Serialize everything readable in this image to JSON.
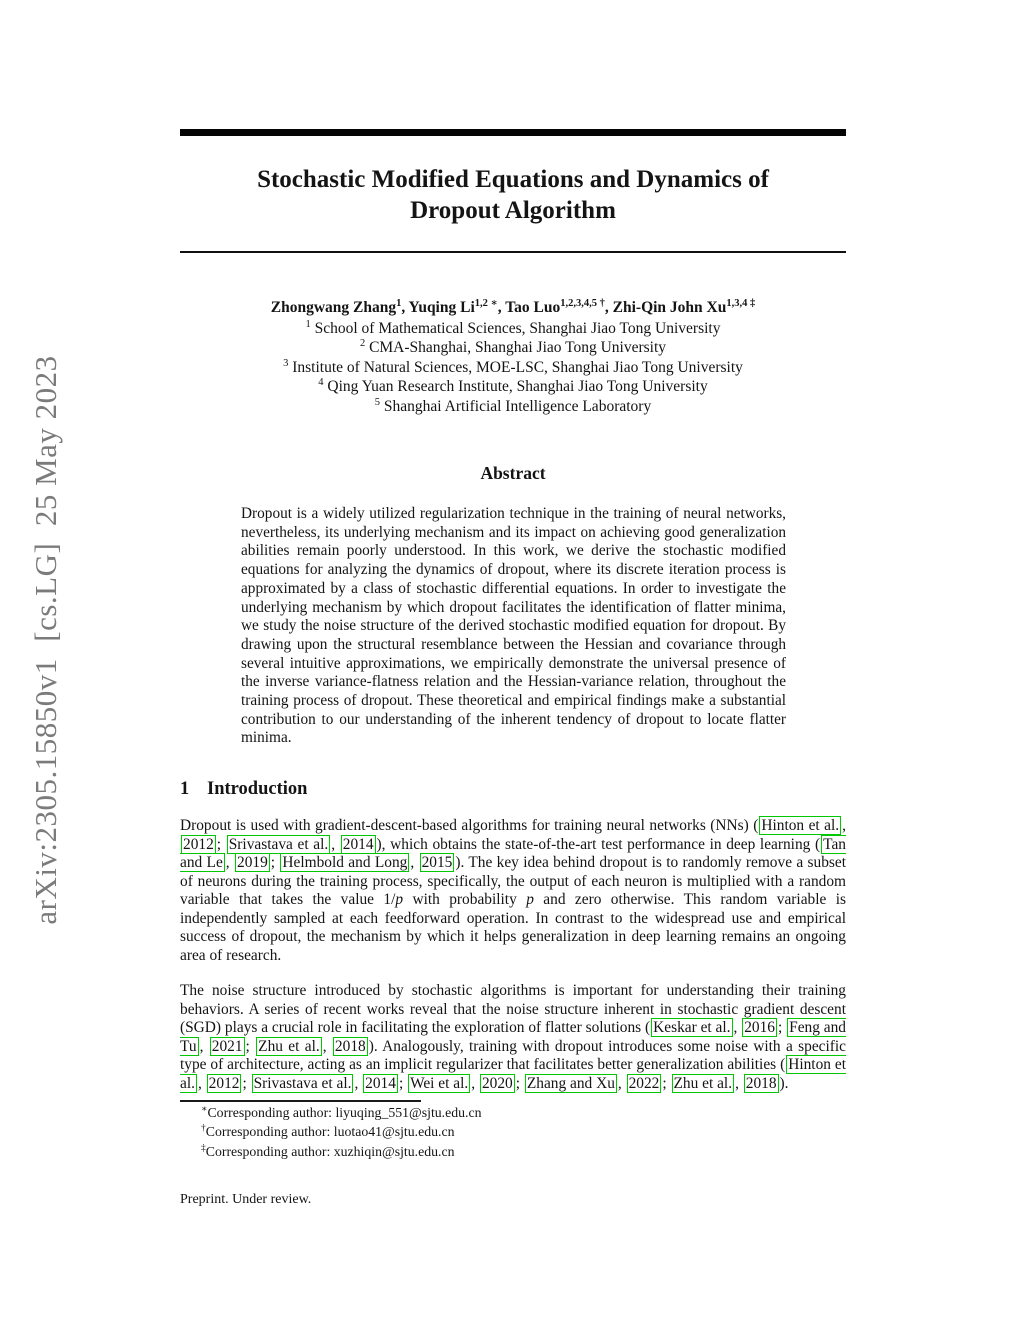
{
  "watermark": {
    "text": "arXiv:2305.15850v1  [cs.LG]  25 May 2023"
  },
  "title": {
    "text": "Stochastic Modified Equations and Dynamics of Dropout Algorithm"
  },
  "authors": {
    "line": [
      {
        "t": "Zhongwang Zhang"
      },
      {
        "sup": "1"
      },
      {
        "t": ", Yuqing Li"
      },
      {
        "sup": "1,2 ∗"
      },
      {
        "t": ", Tao Luo"
      },
      {
        "sup": "1,2,3,4,5 †"
      },
      {
        "t": ", Zhi-Qin John Xu"
      },
      {
        "sup": "1,3,4 ‡"
      }
    ],
    "affiliations": [
      [
        {
          "sup": "1"
        },
        {
          "t": " School of Mathematical Sciences, Shanghai Jiao Tong University"
        }
      ],
      [
        {
          "sup": "2"
        },
        {
          "t": " CMA-Shanghai, Shanghai Jiao Tong University"
        }
      ],
      [
        {
          "sup": "3"
        },
        {
          "t": " Institute of Natural Sciences, MOE-LSC, Shanghai Jiao Tong University"
        }
      ],
      [
        {
          "sup": "4"
        },
        {
          "t": " Qing Yuan Research Institute, Shanghai Jiao Tong University"
        }
      ],
      [
        {
          "sup": "5"
        },
        {
          "t": " Shanghai Artificial Intelligence Laboratory"
        }
      ]
    ]
  },
  "abstract": {
    "heading": "Abstract",
    "text": "Dropout is a widely utilized regularization technique in the training of neural networks, nevertheless, its underlying mechanism and its impact on achieving good generalization abilities remain poorly understood. In this work, we derive the stochastic modified equations for analyzing the dynamics of dropout, where its discrete iteration process is approximated by a class of stochastic differential equations. In order to investigate the underlying mechanism by which dropout facilitates the identification of flatter minima, we study the noise structure of the derived stochastic modified equation for dropout. By drawing upon the structural resemblance between the Hessian and covariance through several intuitive approximations, we empirically demonstrate the universal presence of the inverse variance-flatness relation and the Hessian-variance relation, throughout the training process of dropout. These theoretical and empirical findings make a substantial contribution to our understanding of the inherent tendency of dropout to locate flatter minima."
  },
  "introduction": {
    "number": "1",
    "heading": "Introduction",
    "paragraphs": [
      [
        {
          "t": "Dropout is used with gradient-descent-based algorithms for training neural networks (NNs) ("
        },
        {
          "cite": "Hinton et al."
        },
        {
          "t": ", "
        },
        {
          "cite": "2012"
        },
        {
          "t": "; "
        },
        {
          "cite": "Srivastava et al."
        },
        {
          "t": ", "
        },
        {
          "cite": "2014"
        },
        {
          "t": "), which obtains the state-of-the-art test performance in deep learning ("
        },
        {
          "cite": "Tan and Le"
        },
        {
          "t": ", "
        },
        {
          "cite": "2019"
        },
        {
          "t": "; "
        },
        {
          "cite": "Helmbold and Long"
        },
        {
          "t": ", "
        },
        {
          "cite": "2015"
        },
        {
          "t": "). The key idea behind dropout is to randomly remove a subset of neurons during the training process, specifically, the output of each neuron is multiplied with a random variable that takes the value 1/"
        },
        {
          "i": "p"
        },
        {
          "t": " with probability "
        },
        {
          "i": "p"
        },
        {
          "t": " and zero otherwise. This random variable is independently sampled at each feedforward operation. In contrast to the widespread use and empirical success of dropout, the mechanism by which it helps generalization in deep learning remains an ongoing area of research."
        }
      ],
      [
        {
          "t": "The noise structure introduced by stochastic algorithms is important for understanding their training behaviors. A series of recent works reveal that the noise structure inherent in stochastic gradient descent (SGD) plays a crucial role in facilitating the exploration of flatter solutions ("
        },
        {
          "cite": "Keskar et al."
        },
        {
          "t": ", "
        },
        {
          "cite": "2016"
        },
        {
          "t": "; "
        },
        {
          "cite": "Feng and Tu"
        },
        {
          "t": ", "
        },
        {
          "cite": "2021"
        },
        {
          "t": "; "
        },
        {
          "cite": "Zhu et al."
        },
        {
          "t": ", "
        },
        {
          "cite": "2018"
        },
        {
          "t": "). Analogously, training with dropout introduces some noise with a specific type of architecture, acting as an implicit regularizer that facilitates better generalization abilities ("
        },
        {
          "cite": "Hinton et al."
        },
        {
          "t": ", "
        },
        {
          "cite": "2012"
        },
        {
          "t": "; "
        },
        {
          "cite": "Srivastava et al."
        },
        {
          "t": ", "
        },
        {
          "cite": "2014"
        },
        {
          "t": "; "
        },
        {
          "cite": "Wei et al."
        },
        {
          "t": ", "
        },
        {
          "cite": "2020"
        },
        {
          "t": "; "
        },
        {
          "cite": "Zhang and Xu"
        },
        {
          "t": ", "
        },
        {
          "cite": "2022"
        },
        {
          "t": "; "
        },
        {
          "cite": "Zhu et al."
        },
        {
          "t": ", "
        },
        {
          "cite": "2018"
        },
        {
          "t": ")."
        }
      ]
    ]
  },
  "footnotes": [
    [
      {
        "sup": "∗"
      },
      {
        "t": "Corresponding author: liyuqing_551@sjtu.edu.cn"
      }
    ],
    [
      {
        "sup": "†"
      },
      {
        "t": "Corresponding author: luotao41@sjtu.edu.cn"
      }
    ],
    [
      {
        "sup": "‡"
      },
      {
        "t": "Corresponding author: xuzhiqin@sjtu.edu.cn"
      }
    ]
  ],
  "footer": {
    "note": "Preprint. Under review."
  },
  "colors": {
    "citation_border": "#00c800",
    "watermark_gray": "#7b7b7b"
  }
}
